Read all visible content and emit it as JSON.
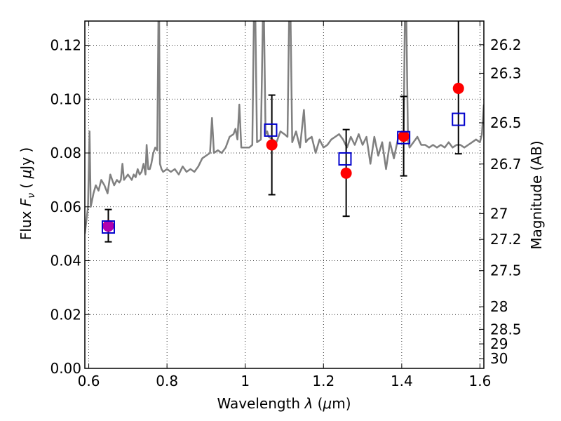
{
  "chart_data": {
    "type": "scatter",
    "xlabel": "Wavelength  λ (μm)",
    "ylabel": "Flux  F_ν  ( μJy )",
    "y2label": "Magnitude (AB)",
    "xlim": [
      0.59,
      1.61
    ],
    "ylim": [
      0.0,
      0.129
    ],
    "grid": true,
    "x_ticks": [
      0.6,
      0.8,
      1.0,
      1.2,
      1.4,
      1.6
    ],
    "x_tick_labels": [
      "0.6",
      "0.8",
      "1",
      "1.2",
      "1.4",
      "1.6"
    ],
    "y_ticks": [
      0.0,
      0.02,
      0.04,
      0.06,
      0.08,
      0.1,
      0.12
    ],
    "y_tick_labels": [
      "0.00",
      "0.02",
      "0.04",
      "0.06",
      "0.08",
      "0.10",
      "0.12"
    ],
    "mag_ticks": [
      {
        "label": "26.2",
        "value": 0.1202
      },
      {
        "label": "26.3",
        "value": 0.1096
      },
      {
        "label": "26.5",
        "value": 0.0912
      },
      {
        "label": "26.7",
        "value": 0.0759
      },
      {
        "label": "27",
        "value": 0.0575
      },
      {
        "label": "27.2",
        "value": 0.0479
      },
      {
        "label": "27.5",
        "value": 0.0363
      },
      {
        "label": "28",
        "value": 0.0229
      },
      {
        "label": "28.5",
        "value": 0.0145
      },
      {
        "label": "29",
        "value": 0.0091
      },
      {
        "label": "30",
        "value": 0.0036
      }
    ],
    "series": [
      {
        "kind": "observed",
        "marker": "filled-circle",
        "color": "#ff0000",
        "x": [
          0.65,
          1.068,
          1.258,
          1.405,
          1.545
        ],
        "y": [
          0.053,
          0.083,
          0.0725,
          0.0862,
          0.104
        ],
        "yerr_low": [
          0.047,
          0.0645,
          0.0565,
          0.0715,
          0.0797
        ],
        "yerr_high": [
          0.059,
          0.1015,
          0.0887,
          0.101,
          0.129
        ]
      },
      {
        "kind": "model",
        "marker": "open-square",
        "color": "#0000cc",
        "x": [
          0.65,
          1.065,
          1.255,
          1.405,
          1.545
        ],
        "y": [
          0.0525,
          0.0885,
          0.0778,
          0.0857,
          0.0925
        ]
      }
    ],
    "highlight_point": {
      "x": 0.65,
      "y": 0.0528,
      "color": "#b000b0"
    },
    "spectrum": {
      "color": "#808080",
      "x": [
        0.59,
        0.598,
        0.602,
        0.605,
        0.608,
        0.612,
        0.618,
        0.625,
        0.632,
        0.64,
        0.648,
        0.655,
        0.66,
        0.665,
        0.672,
        0.678,
        0.682,
        0.686,
        0.69,
        0.695,
        0.7,
        0.705,
        0.71,
        0.715,
        0.72,
        0.725,
        0.73,
        0.735,
        0.74,
        0.745,
        0.748,
        0.752,
        0.756,
        0.76,
        0.765,
        0.77,
        0.775,
        0.778,
        0.78,
        0.782,
        0.786,
        0.79,
        0.8,
        0.81,
        0.82,
        0.83,
        0.84,
        0.85,
        0.86,
        0.87,
        0.88,
        0.89,
        0.9,
        0.91,
        0.915,
        0.92,
        0.93,
        0.94,
        0.95,
        0.96,
        0.97,
        0.975,
        0.98,
        0.985,
        0.99,
        0.995,
        1.0,
        1.01,
        1.018,
        1.022,
        1.026,
        1.03,
        1.04,
        1.045,
        1.048,
        1.052,
        1.056,
        1.06,
        1.07,
        1.08,
        1.09,
        1.1,
        1.108,
        1.112,
        1.116,
        1.12,
        1.13,
        1.14,
        1.15,
        1.155,
        1.16,
        1.17,
        1.18,
        1.19,
        1.2,
        1.21,
        1.22,
        1.23,
        1.24,
        1.25,
        1.26,
        1.27,
        1.28,
        1.29,
        1.3,
        1.31,
        1.32,
        1.33,
        1.34,
        1.35,
        1.36,
        1.37,
        1.38,
        1.39,
        1.4,
        1.405,
        1.408,
        1.412,
        1.416,
        1.42,
        1.43,
        1.44,
        1.45,
        1.46,
        1.47,
        1.48,
        1.49,
        1.5,
        1.51,
        1.52,
        1.53,
        1.54,
        1.55,
        1.56,
        1.57,
        1.58,
        1.59,
        1.6,
        1.605,
        1.61
      ],
      "y": [
        0.05,
        0.06,
        0.088,
        0.06,
        0.062,
        0.065,
        0.068,
        0.066,
        0.07,
        0.068,
        0.065,
        0.072,
        0.07,
        0.068,
        0.07,
        0.069,
        0.07,
        0.076,
        0.07,
        0.071,
        0.072,
        0.071,
        0.07,
        0.072,
        0.071,
        0.074,
        0.072,
        0.073,
        0.076,
        0.072,
        0.083,
        0.074,
        0.074,
        0.076,
        0.08,
        0.082,
        0.081,
        0.129,
        0.129,
        0.076,
        0.074,
        0.073,
        0.074,
        0.073,
        0.074,
        0.072,
        0.075,
        0.073,
        0.074,
        0.073,
        0.075,
        0.078,
        0.079,
        0.08,
        0.093,
        0.08,
        0.081,
        0.08,
        0.082,
        0.086,
        0.087,
        0.089,
        0.085,
        0.098,
        0.082,
        0.082,
        0.082,
        0.082,
        0.083,
        0.129,
        0.129,
        0.084,
        0.085,
        0.129,
        0.129,
        0.087,
        0.088,
        0.086,
        0.085,
        0.084,
        0.088,
        0.087,
        0.086,
        0.129,
        0.129,
        0.084,
        0.088,
        0.082,
        0.096,
        0.084,
        0.085,
        0.086,
        0.08,
        0.085,
        0.082,
        0.083,
        0.085,
        0.086,
        0.087,
        0.085,
        0.082,
        0.086,
        0.083,
        0.087,
        0.083,
        0.086,
        0.076,
        0.086,
        0.079,
        0.084,
        0.074,
        0.084,
        0.078,
        0.085,
        0.088,
        0.087,
        0.129,
        0.129,
        0.085,
        0.082,
        0.084,
        0.086,
        0.083,
        0.083,
        0.082,
        0.083,
        0.082,
        0.083,
        0.082,
        0.084,
        0.082,
        0.083,
        0.083,
        0.082,
        0.083,
        0.084,
        0.085,
        0.084,
        0.087,
        0.098
      ]
    }
  }
}
